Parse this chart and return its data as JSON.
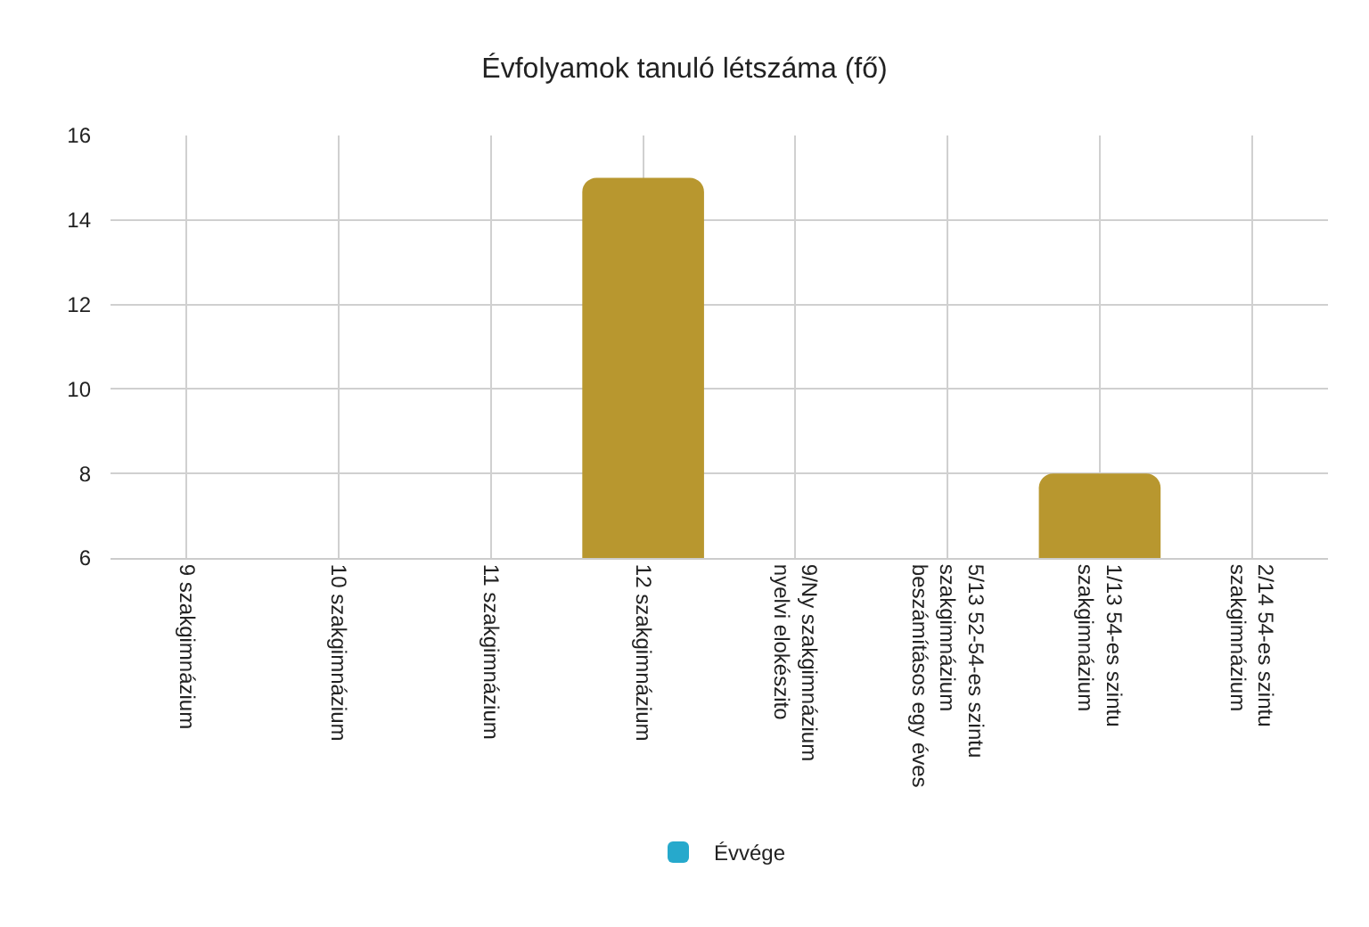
{
  "chart_data": {
    "type": "bar",
    "title": "Évfolyamok tanuló létszáma (fő)",
    "categories": [
      "9 szakgimnázium",
      "10 szakgimnázium",
      "11 szakgimnázium",
      "12 szakgimnázium",
      "9/Ny szakgimnázium nyelvi elokészito",
      "5/13 52-54-es szintu szakgimnázium beszámításos egy éves",
      "1/13 54-es szintu szakgimnázium",
      "2/14 54-es szintu szakgimnázium"
    ],
    "series": [
      {
        "name": "Évvége",
        "color": "#26a9cc",
        "colors": [
          "#b8972f",
          "#b8972f",
          "#b8972f",
          "#b8972f",
          "#b8972f",
          "#b8972f",
          "#b8972f",
          "#b8972f"
        ],
        "values": [
          null,
          null,
          null,
          15,
          null,
          null,
          8,
          null
        ]
      }
    ],
    "ylim": [
      6,
      16
    ],
    "yticks": [
      6,
      8,
      10,
      12,
      14,
      16
    ],
    "grid": true,
    "legend": "bottom"
  }
}
